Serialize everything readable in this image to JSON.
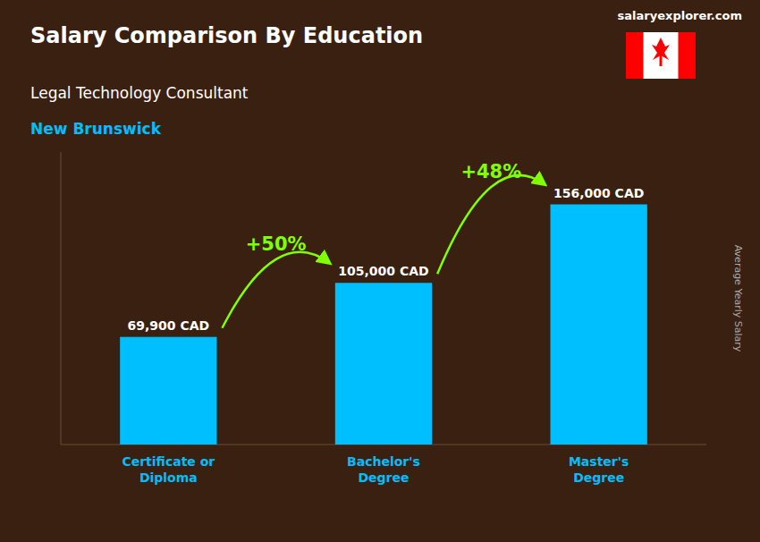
{
  "chart_data": {
    "type": "bar",
    "title": "Salary Comparison By Education",
    "subtitle": [
      "Legal Technology Consultant",
      "New Brunswick"
    ],
    "watermark": "salaryexplorer.com",
    "ylabel": "Average Yearly Salary",
    "categories": [
      "Certificate or\nDiploma",
      "Bachelor's\nDegree",
      "Master's\nDegree"
    ],
    "values": [
      69900,
      105000,
      156000
    ],
    "value_labels": [
      "69,900 CAD",
      "105,000 CAD",
      "156,000 CAD"
    ],
    "data_labels": true,
    "annotations": [
      "+50%",
      "+48%"
    ],
    "color": "#00BFFF",
    "ylim": [
      0,
      190000
    ],
    "yticks": [],
    "grid": false,
    "tick_labels": "x"
  }
}
